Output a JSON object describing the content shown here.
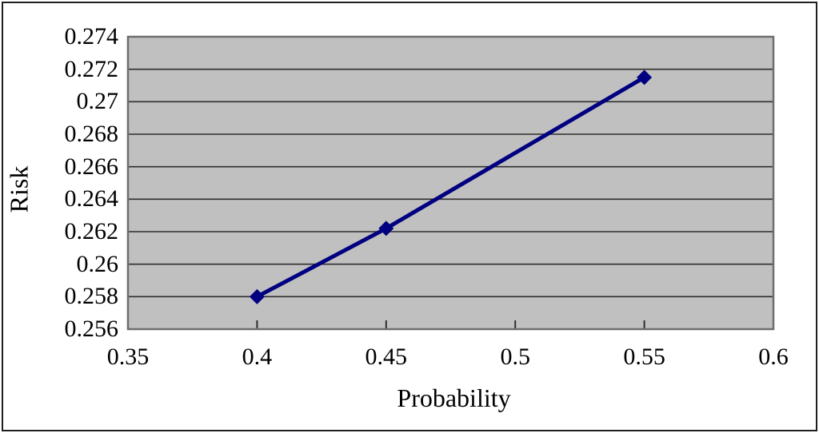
{
  "chart_data": {
    "type": "line",
    "title": "",
    "xlabel": "Probability",
    "ylabel": "Risk",
    "xlim": [
      0.35,
      0.6
    ],
    "ylim": [
      0.256,
      0.274
    ],
    "x_ticks": [
      0.35,
      0.4,
      0.45,
      0.5,
      0.55,
      0.6
    ],
    "x_tick_labels": [
      "0.35",
      "0.4",
      "0.45",
      "0.5",
      "0.55",
      "0.6"
    ],
    "y_ticks": [
      0.256,
      0.258,
      0.26,
      0.262,
      0.264,
      0.266,
      0.268,
      0.27,
      0.272,
      0.274
    ],
    "y_tick_labels": [
      "0.256",
      "0.258",
      "0.26",
      "0.262",
      "0.264",
      "0.266",
      "0.268",
      "0.27",
      "0.272",
      "0.274"
    ],
    "grid": "horizontal-only",
    "legend": "none",
    "series": [
      {
        "name": "Risk",
        "x": [
          0.4,
          0.45,
          0.55
        ],
        "y": [
          0.258,
          0.2622,
          0.2715
        ],
        "marker": "diamond",
        "color": "#000080"
      }
    ],
    "colors": {
      "plot_background": "#c0c0c0",
      "gridline": "#2e2e2e",
      "plot_border": "#6e6e6e",
      "outer_border": "#1f1f1f",
      "text": "#000000"
    }
  }
}
